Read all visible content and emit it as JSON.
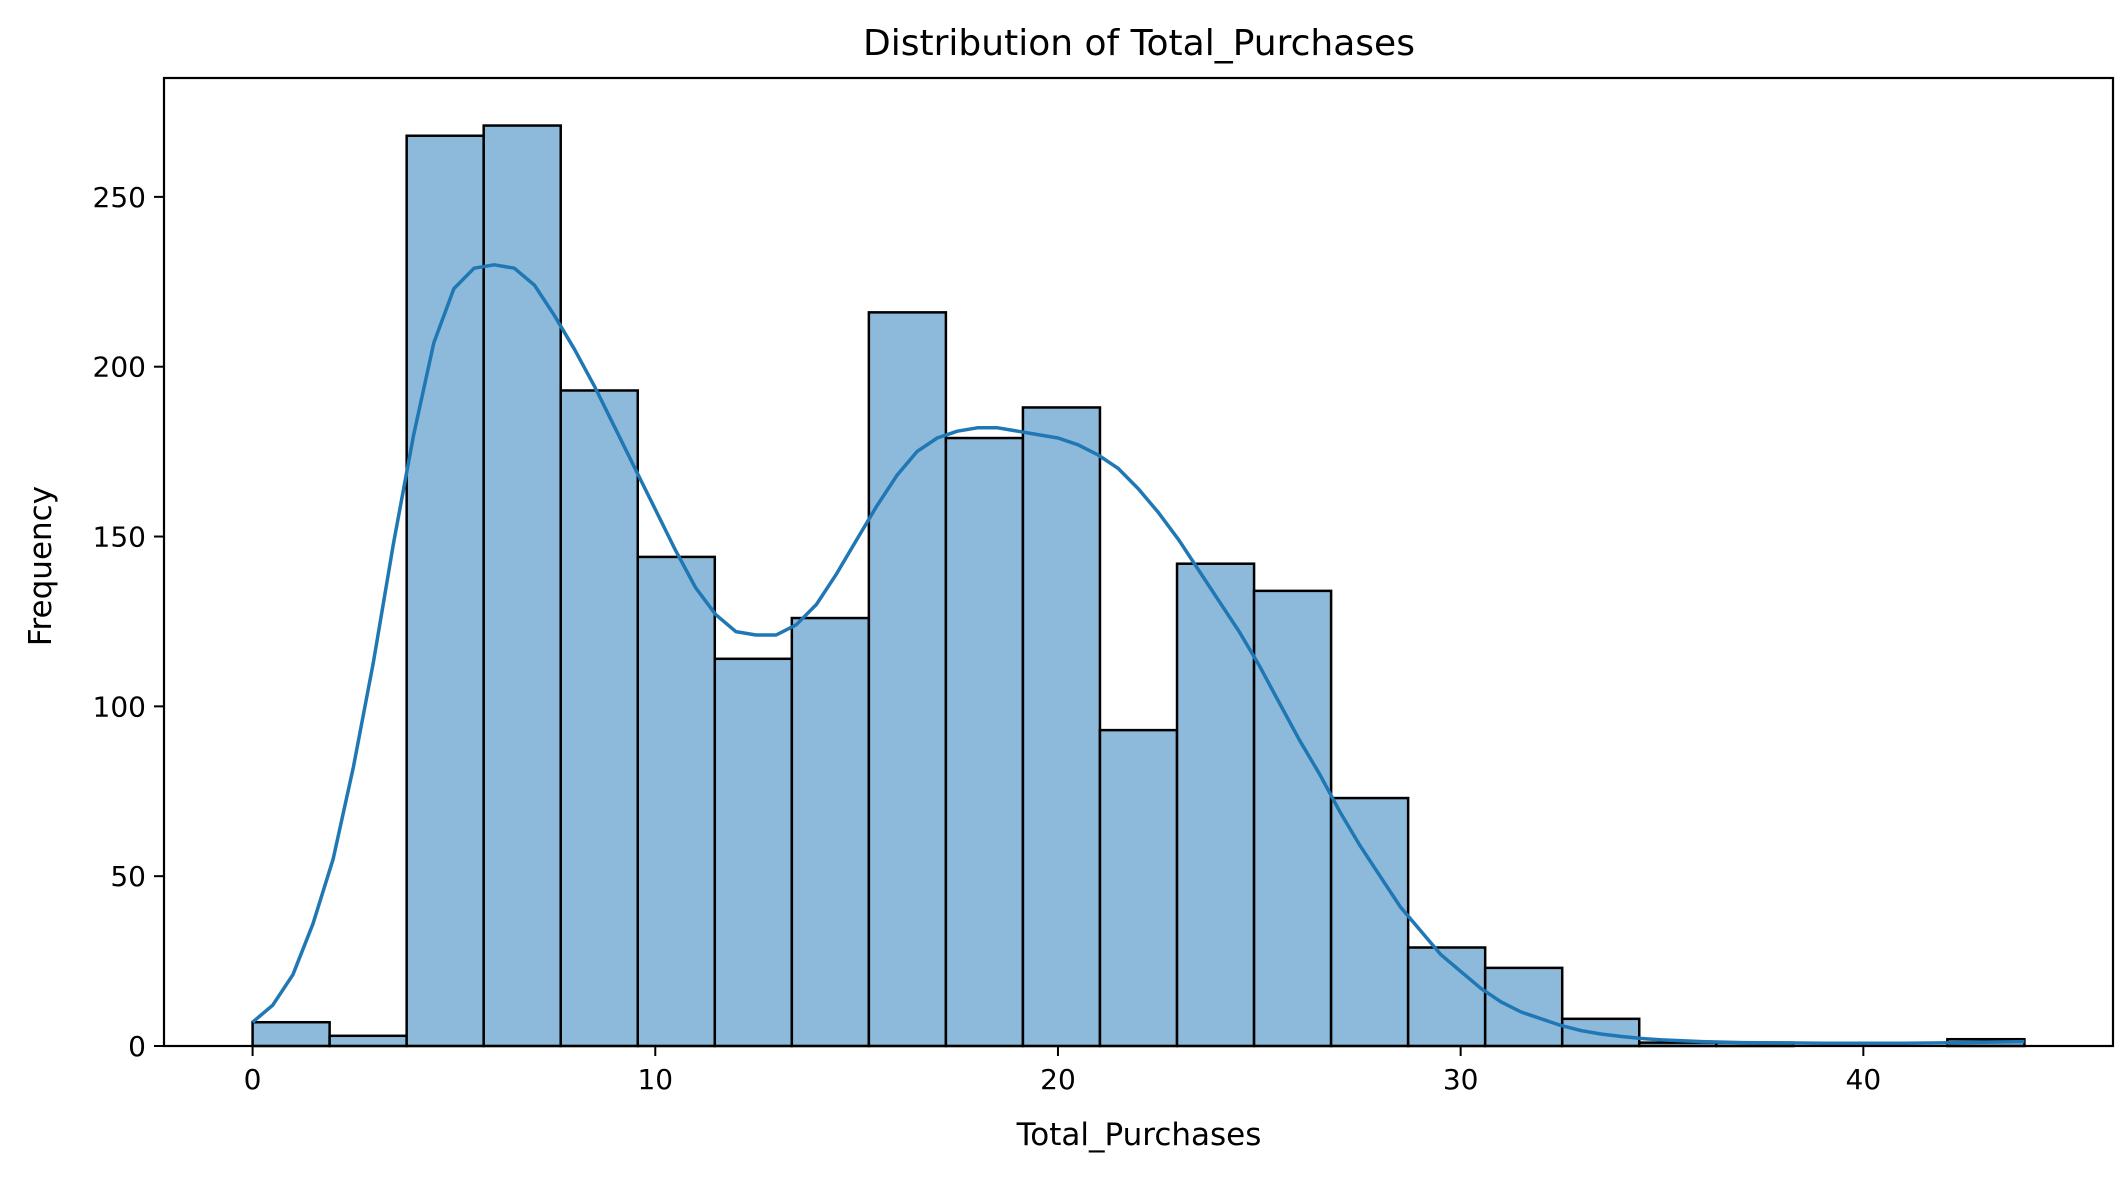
{
  "chart_data": {
    "type": "bar",
    "subtype": "histogram-with-kde",
    "title": "Distribution of Total_Purchases",
    "xlabel": "Total_Purchases",
    "ylabel": "Frequency",
    "xlim": [
      -2.2,
      46.2
    ],
    "ylim": [
      0,
      285
    ],
    "xticks": [
      0,
      10,
      20,
      30,
      40
    ],
    "yticks": [
      0,
      50,
      100,
      150,
      200,
      250
    ],
    "bin_edges": [
      0,
      1.913,
      3.826,
      5.739,
      7.652,
      9.565,
      11.478,
      13.391,
      15.304,
      17.217,
      19.13,
      21.043,
      22.957,
      24.87,
      26.783,
      28.696,
      30.609,
      32.522,
      34.435,
      36.348,
      38.261,
      40.174,
      42.087,
      44
    ],
    "values": [
      7,
      3,
      268,
      271,
      193,
      144,
      114,
      126,
      216,
      179,
      188,
      93,
      142,
      134,
      73,
      29,
      23,
      8,
      1,
      1,
      0,
      0,
      2
    ],
    "kde": {
      "x": [
        0,
        0.5,
        1,
        1.5,
        2,
        2.5,
        3,
        3.5,
        4,
        4.5,
        5,
        5.5,
        6,
        6.5,
        7,
        7.5,
        8,
        8.5,
        9,
        9.5,
        10,
        10.5,
        11,
        11.5,
        12,
        12.5,
        13,
        13.5,
        14,
        14.5,
        15,
        15.5,
        16,
        16.5,
        17,
        17.5,
        18,
        18.5,
        19,
        19.5,
        20,
        20.5,
        21,
        21.5,
        22,
        22.5,
        23,
        23.5,
        24,
        24.5,
        25,
        25.5,
        26,
        26.5,
        27,
        27.5,
        28,
        28.5,
        29,
        29.5,
        30,
        30.5,
        31,
        31.5,
        32,
        32.5,
        33,
        33.5,
        34,
        34.5,
        35,
        36,
        37,
        38,
        39,
        40,
        41,
        42,
        43,
        44
      ],
      "y": [
        7,
        12,
        21,
        36,
        55,
        82,
        113,
        148,
        180,
        207,
        223,
        229,
        230,
        229,
        224,
        215,
        205,
        194,
        182,
        170,
        158,
        146,
        135,
        127,
        122,
        121,
        121,
        124,
        130,
        139,
        149,
        159,
        168,
        175,
        179,
        181,
        182,
        182,
        181,
        180,
        179,
        177,
        174,
        170,
        164,
        157,
        149,
        140,
        131,
        122,
        112,
        101,
        90,
        80,
        69,
        59,
        50,
        41,
        34,
        27,
        22,
        17,
        13,
        10,
        8,
        6,
        4.5,
        3.5,
        2.8,
        2.2,
        1.8,
        1.3,
        1,
        0.9,
        0.8,
        0.8,
        0.8,
        0.9,
        1.1,
        1.3
      ]
    },
    "colors": {
      "bar_fill": "#8db9da",
      "bar_edge": "#000000",
      "kde_line": "#1f77b4"
    },
    "grid": false,
    "legend": "none"
  }
}
